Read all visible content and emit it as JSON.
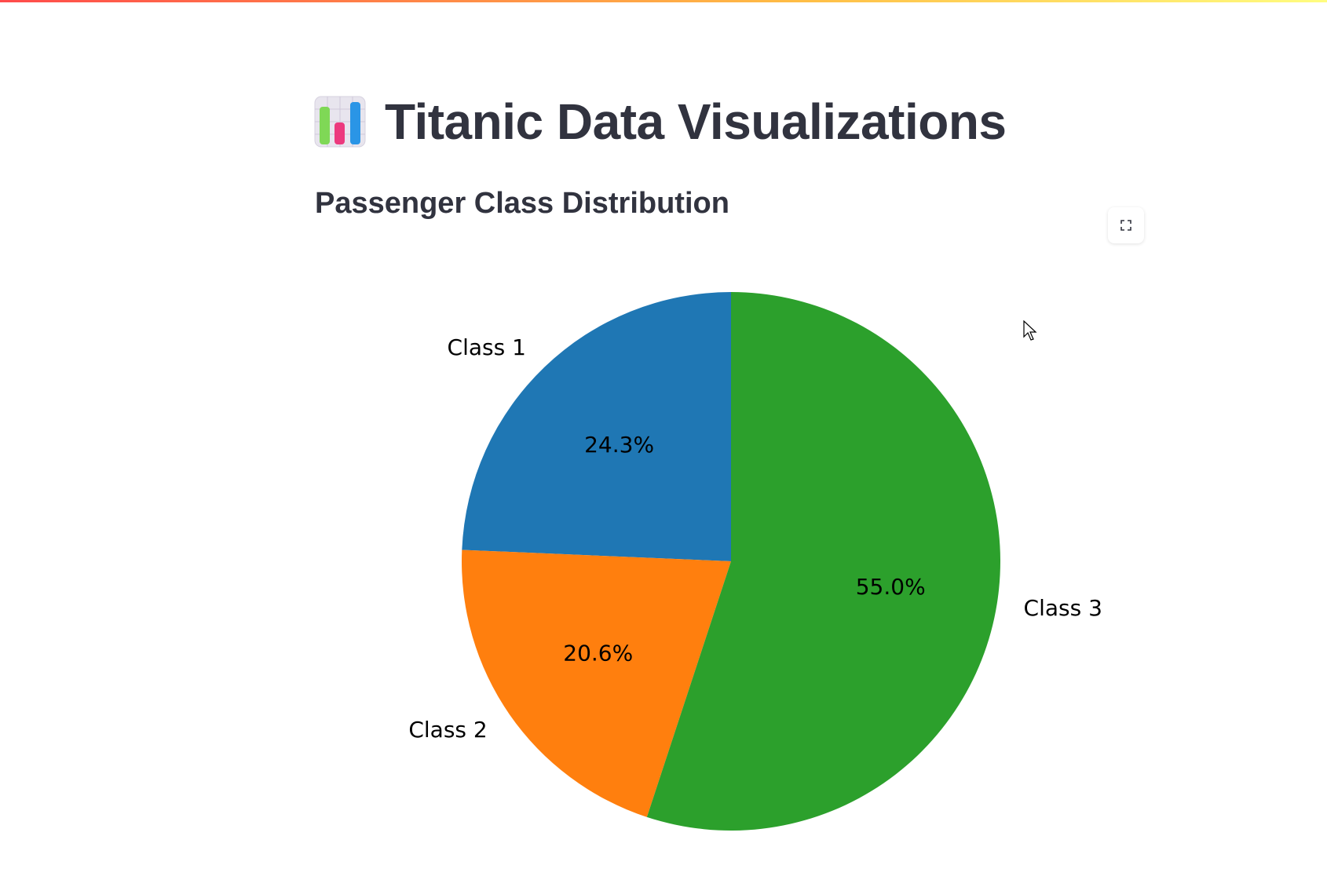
{
  "header": {
    "title": "Titanic Data Visualizations",
    "title_icon": "bar-chart-emoji-icon"
  },
  "section": {
    "title": "Passenger Class Distribution"
  },
  "toolbar": {
    "fullscreen_icon": "fullscreen-icon"
  },
  "colors": {
    "accent_gradient": [
      "#ff4b4b",
      "#ffbd45",
      "#fffd80"
    ],
    "text": "#31333f"
  },
  "chart_data": {
    "type": "pie",
    "title": "",
    "categories": [
      "Class 1",
      "Class 2",
      "Class 3"
    ],
    "values": [
      24.3,
      20.6,
      55.0
    ],
    "percent_labels": [
      "24.3%",
      "20.6%",
      "55.0%"
    ],
    "colors": [
      "#1f77b4",
      "#ff7f0e",
      "#2ca02c"
    ],
    "start_angle_deg": 90,
    "direction": "counterclockwise",
    "legend": "none"
  }
}
